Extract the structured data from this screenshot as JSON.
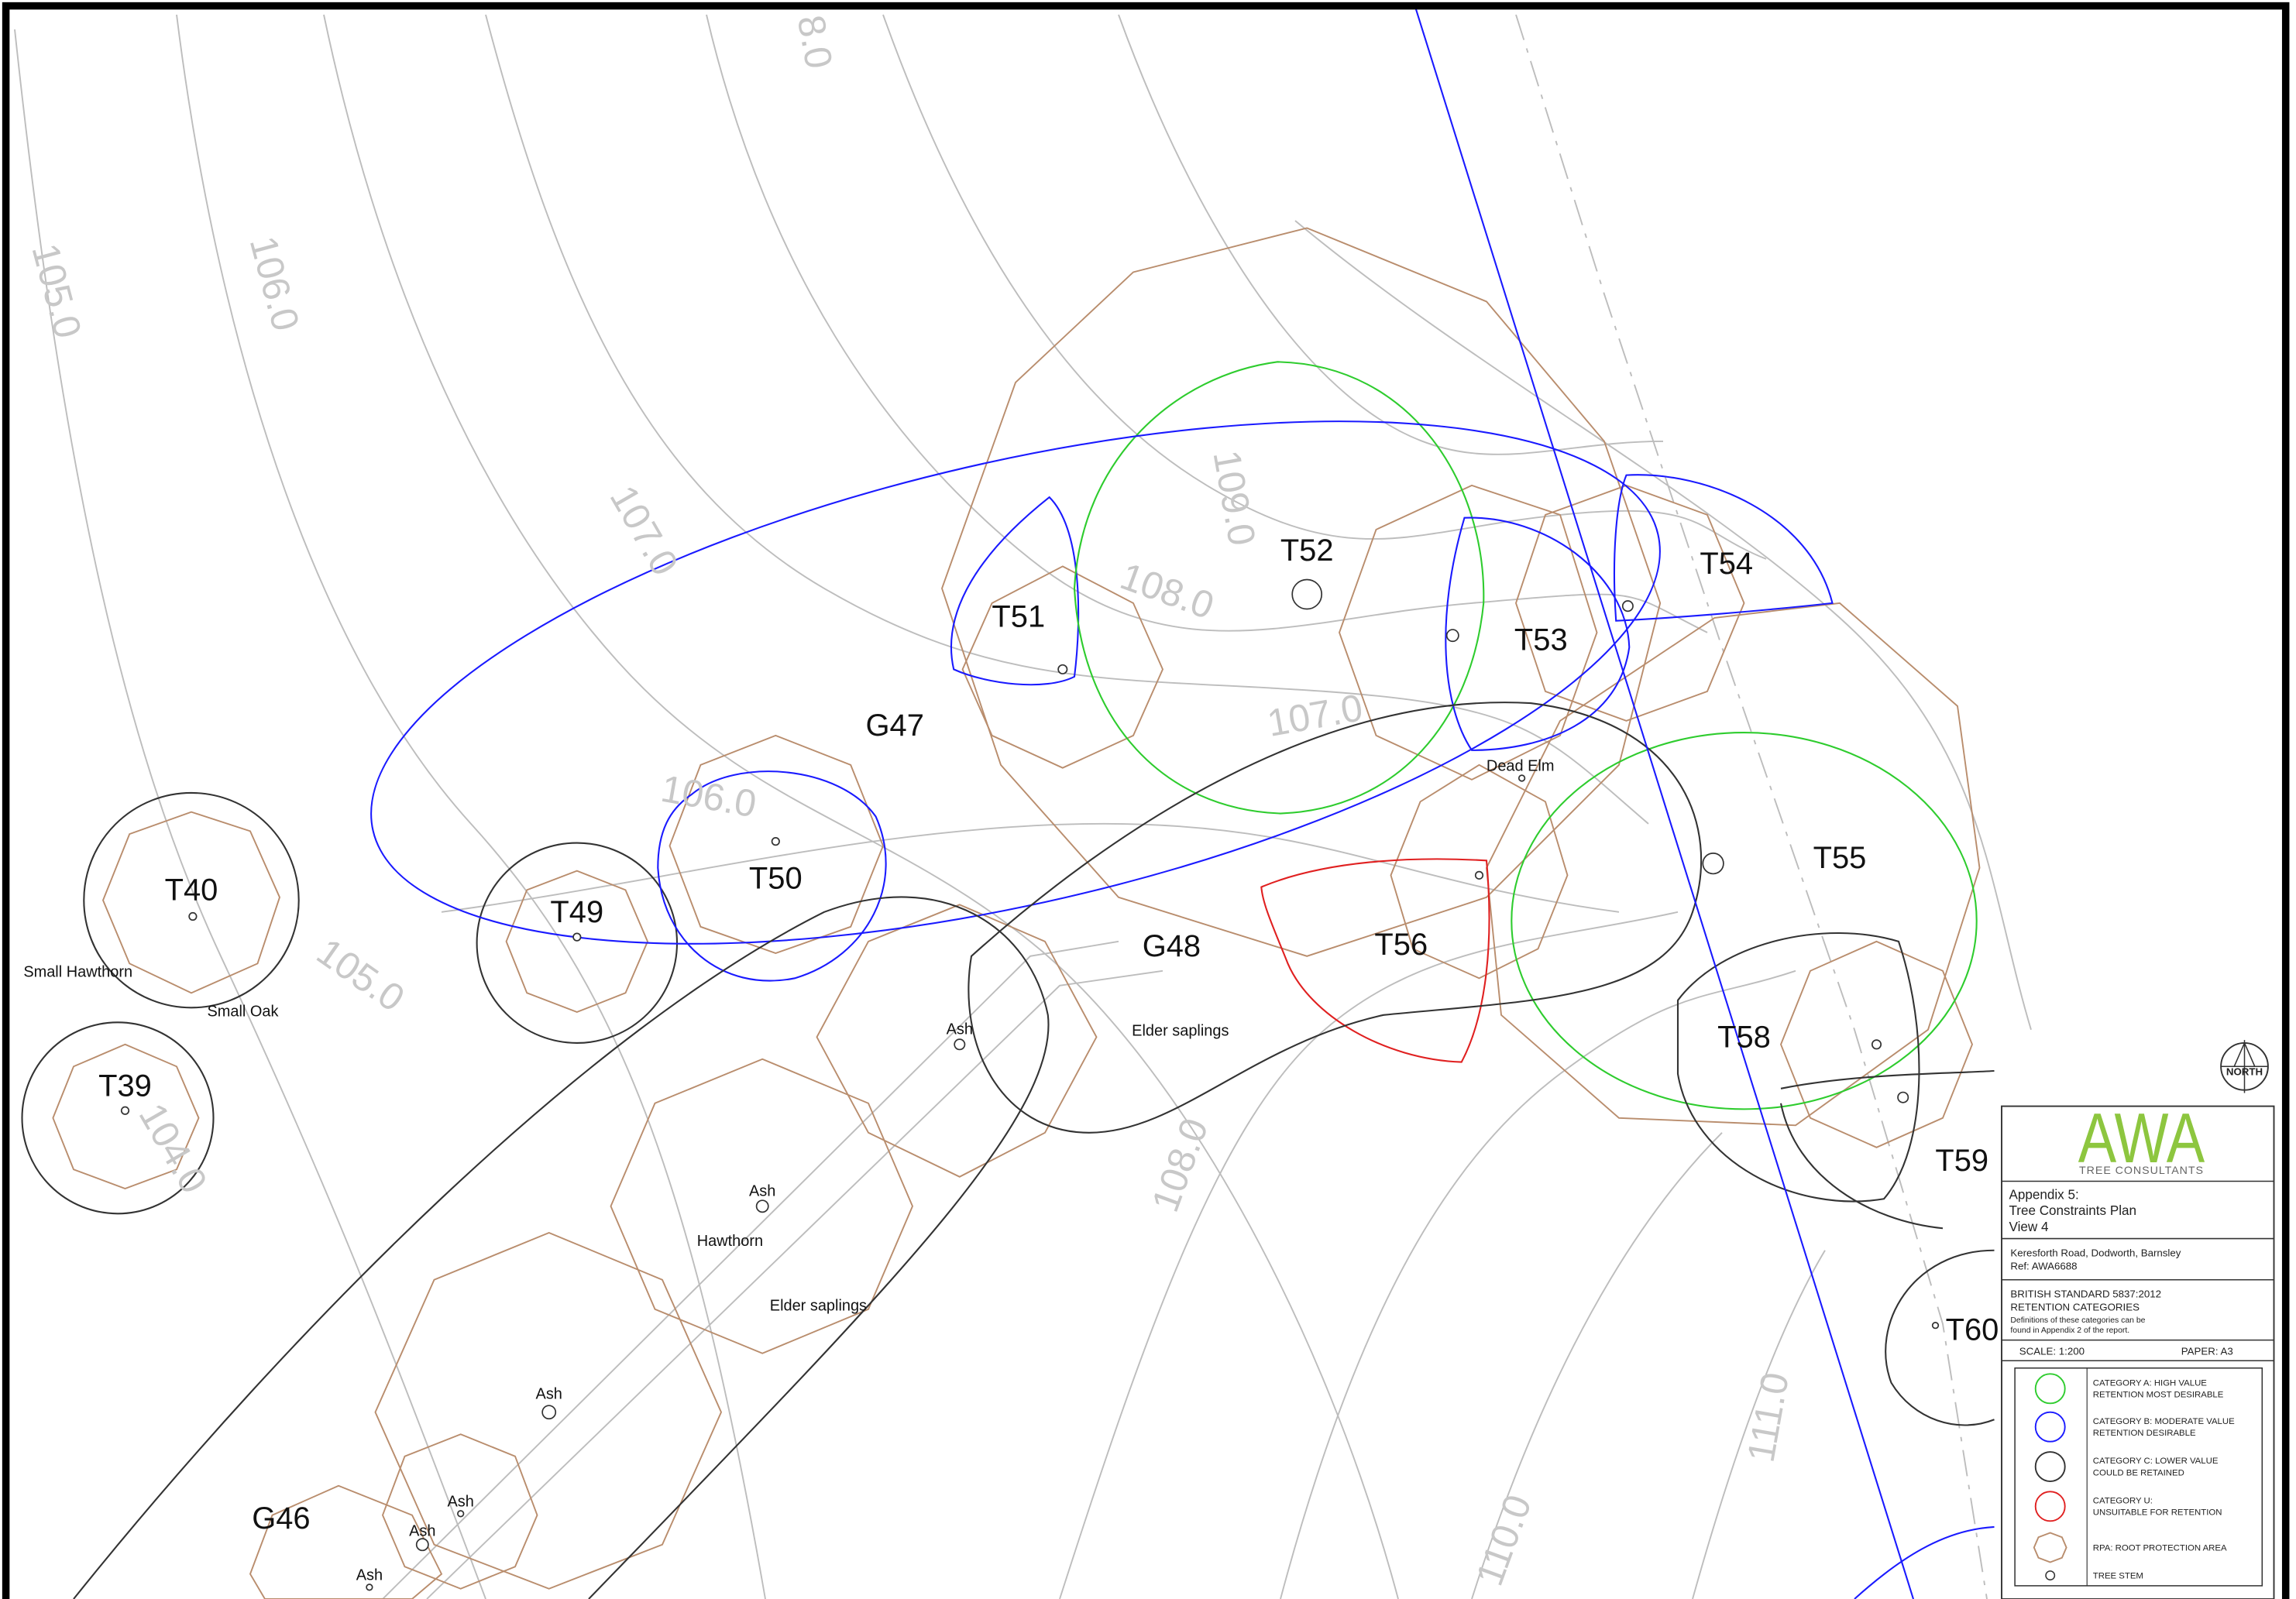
{
  "drawing": {
    "tree_labels": [
      "T39",
      "T40",
      "T49",
      "T50",
      "T51",
      "T52",
      "T53",
      "T54",
      "T55",
      "T56",
      "T58",
      "T59",
      "T60",
      "G46",
      "G47",
      "G48"
    ],
    "notes": [
      "Small Hawthorn",
      "Small Oak",
      "Dead Elm",
      "Ash",
      "Elder saplings",
      "Ash",
      "Hawthorn",
      "Elder saplings",
      "Ash",
      "Ash",
      "Ash",
      "Ash"
    ],
    "contours": [
      "8.0",
      "105.0",
      "106.0",
      "107.0",
      "109.0",
      "108.0",
      "107.0",
      "106.0",
      "105.0",
      "104.0",
      "108.0",
      "111.0",
      "110.0"
    ],
    "north": "NORTH"
  },
  "title_block": {
    "logo": "AWA",
    "logo_subtitle": "TREE CONSULTANTS",
    "appendix": "Appendix 5:",
    "title": "Tree Constraints Plan",
    "view": "View 4",
    "site": "Keresforth Road, Dodworth, Barnsley",
    "ref": "Ref: AWA6688",
    "standard": "BRITISH STANDARD 5837:2012",
    "categories_heading": "RETENTION CATEGORIES",
    "definitions_note_1": "Definitions of these categories can be",
    "definitions_note_2": "found in Appendix 2 of the report.",
    "scale": "SCALE: 1:200",
    "paper": "PAPER: A3"
  },
  "legend": [
    {
      "lines": [
        "CATEGORY A: HIGH VALUE",
        "RETENTION MOST DESIRABLE"
      ]
    },
    {
      "lines": [
        "CATEGORY B: MODERATE VALUE",
        "RETENTION DESIRABLE"
      ]
    },
    {
      "lines": [
        "CATEGORY C: LOWER VALUE",
        "COULD BE RETAINED"
      ]
    },
    {
      "lines": [
        "CATEGORY U:",
        "UNSUITABLE FOR RETENTION"
      ]
    },
    {
      "lines": [
        "RPA: ROOT PROTECTION AREA"
      ]
    },
    {
      "lines": [
        "TREE STEM"
      ]
    }
  ]
}
